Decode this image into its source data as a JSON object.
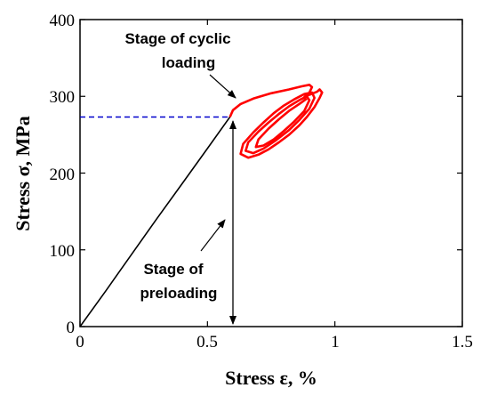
{
  "chart_data": {
    "type": "line",
    "xlabel": "Stress ε, %",
    "ylabel": "Stress σ, MPa",
    "xlim": [
      0,
      1.5
    ],
    "ylim": [
      0,
      400
    ],
    "x_ticks": [
      "0",
      "0.5",
      "1",
      "1.5"
    ],
    "y_ticks": [
      "0",
      "100",
      "200",
      "300",
      "400"
    ],
    "grid": false,
    "legend": "none",
    "series": [
      {
        "color": "#000000",
        "x": [
          0,
          0.1,
          0.2,
          0.3,
          0.4,
          0.5,
          0.588
        ],
        "y": [
          0,
          46,
          93,
          140,
          186,
          232,
          273
        ]
      },
      {
        "color": "#ff0000",
        "x": [
          0.588,
          0.6,
          0.63,
          0.68,
          0.75,
          0.82,
          0.87,
          0.9,
          0.91,
          0.9,
          0.88,
          0.9,
          0.93,
          0.94,
          0.95,
          0.94,
          0.92,
          0.89,
          0.86,
          0.82,
          0.78,
          0.74,
          0.7,
          0.66,
          0.63,
          0.64,
          0.68,
          0.72,
          0.76,
          0.8,
          0.84,
          0.88,
          0.91,
          0.92,
          0.9,
          0.86,
          0.82,
          0.77,
          0.72,
          0.68,
          0.65,
          0.66,
          0.7,
          0.74,
          0.78,
          0.82,
          0.86,
          0.89,
          0.9,
          0.88,
          0.84,
          0.8,
          0.76,
          0.72,
          0.69,
          0.7,
          0.74,
          0.78,
          0.82,
          0.86,
          0.89
        ],
        "y": [
          273,
          282,
          290,
          297,
          304,
          309,
          313,
          315,
          312,
          305,
          299,
          302,
          306,
          309,
          305,
          298,
          286,
          273,
          262,
          250,
          240,
          231,
          224,
          220,
          225,
          238,
          253,
          266,
          278,
          288,
          296,
          303,
          305,
          298,
          284,
          269,
          256,
          243,
          232,
          226,
          229,
          240,
          254,
          266,
          277,
          287,
          295,
          300,
          295,
          281,
          267,
          255,
          244,
          236,
          234,
          244,
          258,
          270,
          281,
          290,
          297
        ]
      },
      {
        "color": "#0000cc",
        "x": [
          0,
          0.588
        ],
        "y": [
          273,
          273
        ]
      }
    ],
    "annotations": [
      {
        "text_lines": [
          "Stage of cyclic",
          "loading"
        ]
      },
      {
        "text_lines": [
          "Stage of",
          "preloading"
        ]
      }
    ]
  }
}
